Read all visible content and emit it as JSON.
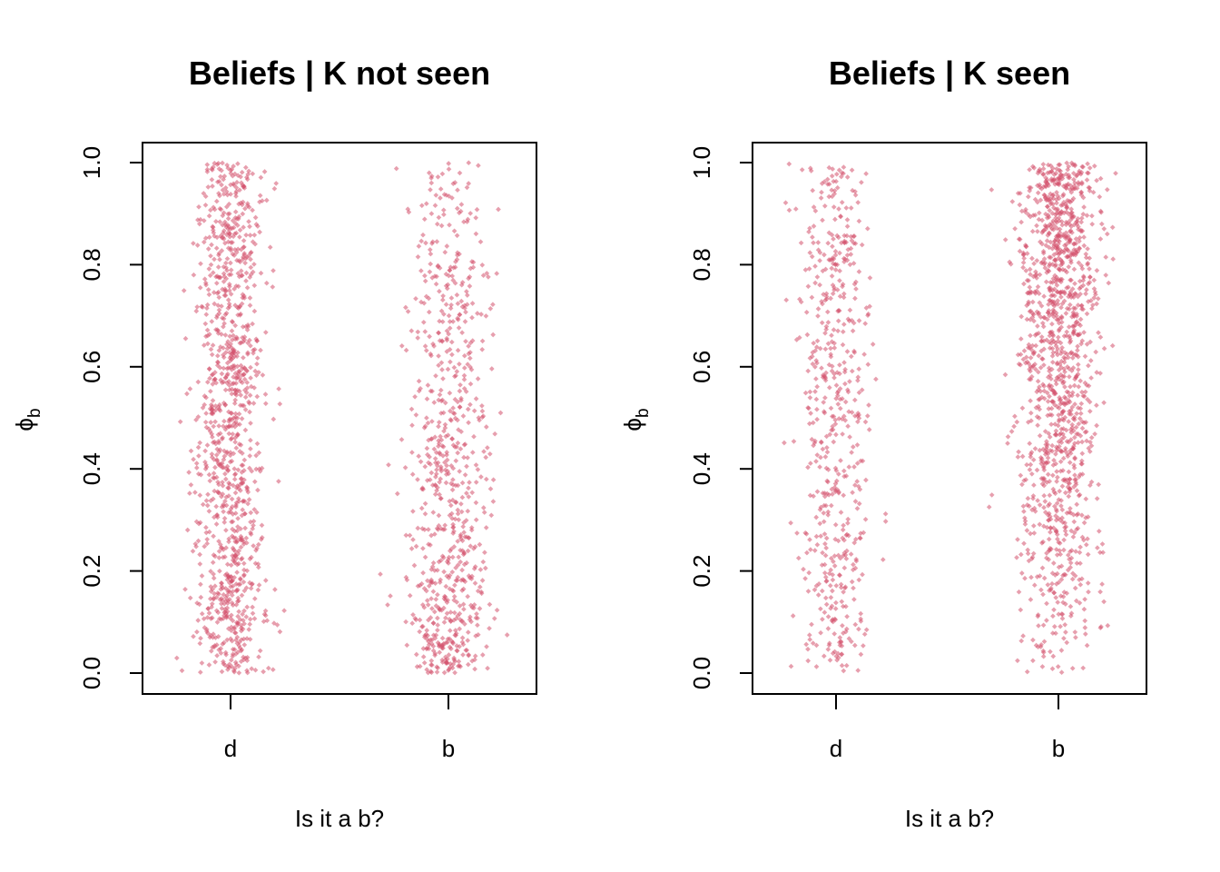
{
  "chart_data": [
    {
      "type": "scatter",
      "title": "Beliefs | K not seen",
      "xlabel": "Is it a b?",
      "ylabel_main": "ϕ",
      "ylabel_sub": "b",
      "categories": [
        "d",
        "b"
      ],
      "ylim": [
        0,
        1
      ],
      "yticks": [
        "0.0",
        "0.2",
        "0.4",
        "0.6",
        "0.8",
        "1.0"
      ],
      "ytick_values": [
        0,
        0.2,
        0.4,
        0.6,
        0.8,
        1.0
      ],
      "point_color": "#d3506b",
      "grid": false,
      "jitter_note_points": {
        "d": {
          "count": 1100,
          "distribution": "roughly uniform 0–1, dense near 1.0 and 0.0"
        },
        "b": {
          "count": 750,
          "distribution": "skewed toward low values, sparse above 0.9"
        }
      }
    },
    {
      "type": "scatter",
      "title": "Beliefs | K seen",
      "xlabel": "Is it a b?",
      "ylabel_main": "ϕ",
      "ylabel_sub": "b",
      "categories": [
        "d",
        "b"
      ],
      "ylim": [
        0,
        1
      ],
      "yticks": [
        "0.0",
        "0.2",
        "0.4",
        "0.6",
        "0.8",
        "1.0"
      ],
      "ytick_values": [
        0,
        0.2,
        0.4,
        0.6,
        0.8,
        1.0
      ],
      "point_color": "#d3506b",
      "grid": false,
      "jitter_note_points": {
        "d": {
          "count": 550,
          "distribution": "roughly uniform 0–1"
        },
        "b": {
          "count": 1300,
          "distribution": "skewed toward high values, sparse below 0.1"
        }
      }
    }
  ]
}
